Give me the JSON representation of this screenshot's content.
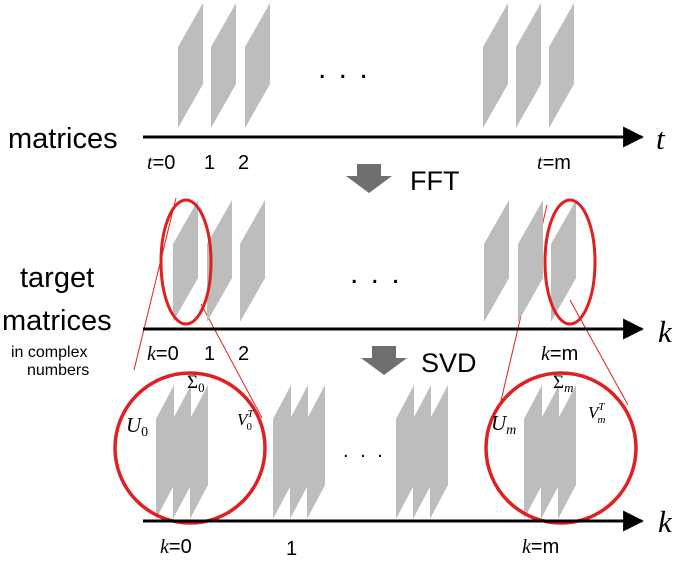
{
  "row1": {
    "label": "matrices",
    "axis_var": "t",
    "ticks": [
      {
        "var": "t",
        "eq": "=0"
      },
      {
        "var": "",
        "eq": "1"
      },
      {
        "var": "",
        "eq": "2"
      },
      {
        "var": "t",
        "eq": "=m"
      }
    ],
    "ellipsis": ". . ."
  },
  "step1": {
    "label": "FFT"
  },
  "row2": {
    "label_line1": "target",
    "label_line2": "matrices",
    "label_line3": "in complex",
    "label_line4": "numbers",
    "axis_var": "k",
    "ticks": [
      {
        "var": "k",
        "eq": "=0"
      },
      {
        "var": "",
        "eq": "1"
      },
      {
        "var": "",
        "eq": "2"
      },
      {
        "var": "k",
        "eq": "=m"
      }
    ],
    "ellipsis": ". . ."
  },
  "step2": {
    "label": "SVD"
  },
  "row3": {
    "axis_var": "k",
    "ticks": [
      {
        "var": "k",
        "eq": "=0"
      },
      {
        "var": "",
        "eq": "1"
      },
      {
        "var": "k",
        "eq": "=m"
      }
    ],
    "ellipsis": ". . .",
    "left": {
      "u": "U",
      "u_sub": "0",
      "sigma": "Σ",
      "sigma_sub": "0",
      "v": "V",
      "v_sub": "0",
      "v_sup": "T"
    },
    "right": {
      "u": "U",
      "u_sub": "m",
      "sigma": "Σ",
      "sigma_sub": "m",
      "v": "V",
      "v_sub": "m",
      "v_sup": "T"
    }
  },
  "colors": {
    "plate": "#bdbdbd",
    "axis": "#000000",
    "highlight": "#e02020",
    "step_arrow": "#6f6f6f"
  }
}
